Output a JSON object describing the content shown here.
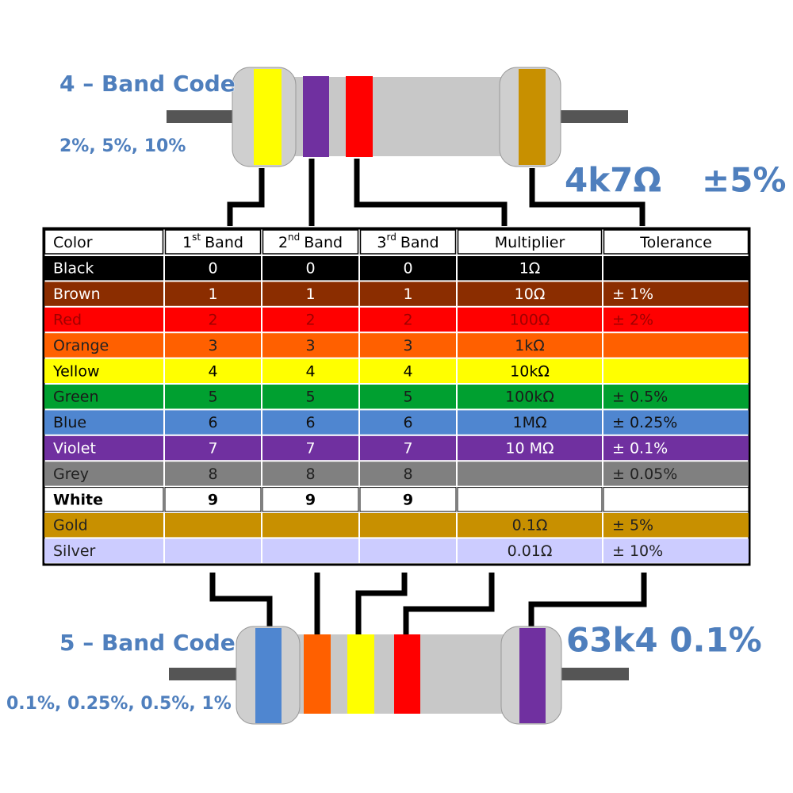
{
  "four_band": {
    "title": "4 – Band Code",
    "tolerances": "2%, 5%, 10%",
    "example_value": "4k7Ω",
    "example_tolerance": "±5%"
  },
  "five_band": {
    "title": "5 – Band Code",
    "tolerances": "0.1%, 0.25%, 0.5%, 1%",
    "example": "63k4 0.1%"
  },
  "table": {
    "header": [
      {
        "main": "Color"
      },
      {
        "main": "1",
        "sup": "st",
        "rest": "Band"
      },
      {
        "main": "2",
        "sup": "nd",
        "rest": "Band"
      },
      {
        "main": "3",
        "sup": "rd",
        "rest": "Band"
      },
      {
        "main": "Multiplier"
      },
      {
        "main": "Tolerance"
      }
    ],
    "rows": [
      [
        "Black",
        0,
        0,
        0,
        "1Ω",
        null
      ],
      [
        "Brown",
        1,
        1,
        1,
        "10Ω",
        "± 1%"
      ],
      [
        "Red",
        2,
        2,
        2,
        "100Ω",
        "± 2%"
      ],
      [
        "Orange",
        3,
        3,
        3,
        "1kΩ",
        null
      ],
      [
        "Yellow",
        4,
        4,
        4,
        "10kΩ",
        null
      ],
      [
        "Green",
        5,
        5,
        5,
        "100kΩ",
        "± 0.5%"
      ],
      [
        "Blue",
        6,
        6,
        6,
        "1MΩ",
        "± 0.25%"
      ],
      [
        "Violet",
        7,
        7,
        7,
        "10 MΩ",
        "± 0.1%"
      ],
      [
        "Grey",
        8,
        8,
        8,
        null,
        "± 0.05%"
      ],
      [
        "White",
        9,
        9,
        9,
        null,
        null
      ],
      [
        "Gold",
        null,
        null,
        null,
        "0.1Ω",
        "± 5%"
      ],
      [
        "Silver",
        null,
        null,
        null,
        "0.01Ω",
        "± 10%"
      ]
    ]
  }
}
